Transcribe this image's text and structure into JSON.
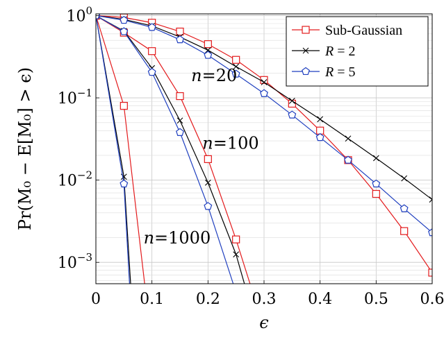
{
  "chart_data": {
    "type": "line",
    "xlabel": "ϵ",
    "ylabel": "Pr(M₀ − E[M₀] > ϵ)",
    "xlim": [
      0,
      0.6
    ],
    "ylim": [
      0.00055,
      1.05
    ],
    "yscale": "log",
    "grid": true,
    "legend_position": "top-right",
    "x_ticks": [
      "0",
      "0.1",
      "0.2",
      "0.3",
      "0.4",
      "0.5",
      "0.6"
    ],
    "y_ticks": [
      {
        "base": "10",
        "exp": "0",
        "value": 1
      },
      {
        "base": "10",
        "exp": "−1",
        "value": 0.1
      },
      {
        "base": "10",
        "exp": "−2",
        "value": 0.01
      },
      {
        "base": "10",
        "exp": "−3",
        "value": 0.001
      }
    ],
    "series": [
      {
        "name": "Sub-Gaussian",
        "color": "#e31a1c",
        "marker": "square",
        "curves": [
          {
            "x": [
              0,
              0.05,
              0.1,
              0.15,
              0.2,
              0.25,
              0.3,
              0.35,
              0.4,
              0.45,
              0.5,
              0.55,
              0.6
            ],
            "y": [
              1,
              0.95,
              0.82,
              0.64,
              0.45,
              0.29,
              0.165,
              0.085,
              0.04,
              0.0175,
              0.0068,
              0.0024,
              0.00075
            ]
          },
          {
            "x": [
              0,
              0.05,
              0.1,
              0.15,
              0.2,
              0.25,
              0.275
            ],
            "y": [
              1,
              0.62,
              0.37,
              0.105,
              0.018,
              0.0019,
              0.00055
            ]
          },
          {
            "x": [
              0,
              0.05,
              0.087
            ],
            "y": [
              1,
              0.08,
              0.00055
            ]
          }
        ]
      },
      {
        "name": "R = 2",
        "color": "#000000",
        "marker": "x",
        "curves": [
          {
            "x": [
              0,
              0.05,
              0.1,
              0.15,
              0.2,
              0.25,
              0.3,
              0.35,
              0.4,
              0.45,
              0.5,
              0.55,
              0.6
            ],
            "y": [
              1,
              0.9,
              0.75,
              0.55,
              0.38,
              0.24,
              0.155,
              0.092,
              0.055,
              0.032,
              0.0185,
              0.0105,
              0.0058
            ]
          },
          {
            "x": [
              0,
              0.05,
              0.1,
              0.15,
              0.2,
              0.25,
              0.265
            ],
            "y": [
              1,
              0.65,
              0.23,
              0.053,
              0.0093,
              0.00125,
              0.00055
            ]
          },
          {
            "x": [
              0,
              0.05,
              0.062
            ],
            "y": [
              1,
              0.011,
              0.00055
            ]
          }
        ]
      },
      {
        "name": "R = 5",
        "color": "#1f3fbf",
        "marker": "pentagon",
        "curves": [
          {
            "x": [
              0,
              0.05,
              0.1,
              0.15,
              0.2,
              0.25,
              0.3,
              0.35,
              0.4,
              0.45,
              0.5,
              0.55,
              0.6
            ],
            "y": [
              1,
              0.88,
              0.72,
              0.51,
              0.33,
              0.195,
              0.113,
              0.062,
              0.033,
              0.0175,
              0.009,
              0.0045,
              0.0023
            ]
          },
          {
            "x": [
              0,
              0.05,
              0.1,
              0.15,
              0.2,
              0.245
            ],
            "y": [
              1,
              0.64,
              0.205,
              0.038,
              0.0048,
              0.00055
            ]
          },
          {
            "x": [
              0,
              0.05,
              0.06
            ],
            "y": [
              1,
              0.009,
              0.00055
            ]
          }
        ]
      }
    ],
    "annotations": [
      {
        "text": "n=20",
        "x": 0.17,
        "y": 0.16
      },
      {
        "text": "n=100",
        "x": 0.19,
        "y": 0.024
      },
      {
        "text": "n=1000",
        "x": 0.085,
        "y": 0.0017
      }
    ]
  }
}
